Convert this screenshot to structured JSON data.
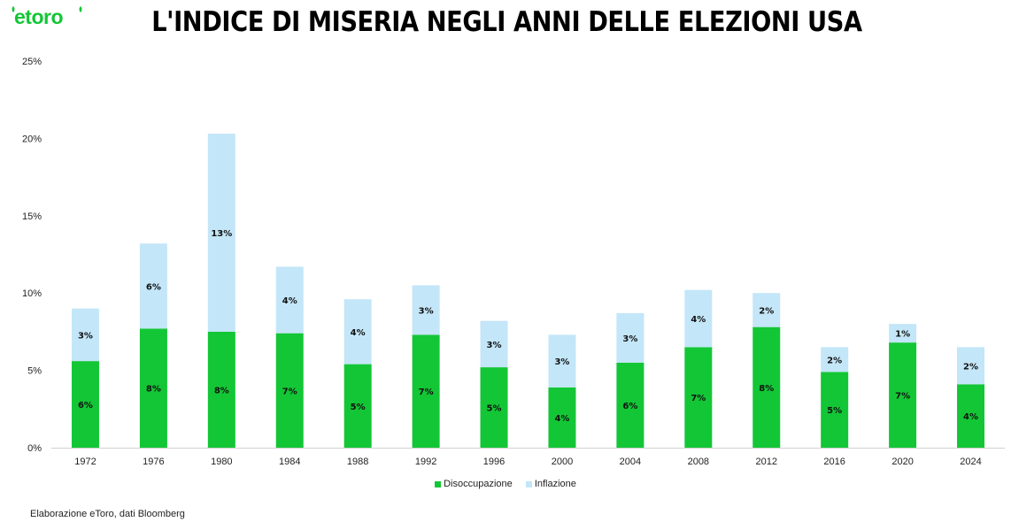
{
  "brand": {
    "logo_text": "etoro"
  },
  "title": "L'INDICE DI MISERIA NEGLI ANNI DELLE ELEZIONI USA",
  "source": "Elaborazione eToro, dati Bloomberg",
  "colors": {
    "disoccupazione": "#13c636",
    "inflazione": "#c3e6f8",
    "brand": "#13c636"
  },
  "chart_data": {
    "type": "bar",
    "stacked": true,
    "categories": [
      "1972",
      "1976",
      "1980",
      "1984",
      "1988",
      "1992",
      "1996",
      "2000",
      "2004",
      "2008",
      "2012",
      "2016",
      "2020",
      "2024"
    ],
    "series": [
      {
        "name": "Disoccupazione",
        "values": [
          5.6,
          7.7,
          7.5,
          7.4,
          5.4,
          7.3,
          5.2,
          3.9,
          5.5,
          6.5,
          7.8,
          4.9,
          6.8,
          4.1
        ],
        "labels": [
          "6%",
          "8%",
          "8%",
          "7%",
          "5%",
          "7%",
          "5%",
          "4%",
          "6%",
          "7%",
          "8%",
          "5%",
          "7%",
          "4%"
        ]
      },
      {
        "name": "Inflazione",
        "values": [
          3.4,
          5.5,
          12.8,
          4.3,
          4.2,
          3.2,
          3.0,
          3.4,
          3.2,
          3.7,
          2.2,
          1.6,
          1.2,
          2.4
        ],
        "labels": [
          "3%",
          "6%",
          "13%",
          "4%",
          "4%",
          "3%",
          "3%",
          "3%",
          "3%",
          "4%",
          "2%",
          "2%",
          "1%",
          "2%"
        ]
      }
    ],
    "ylim": [
      0,
      25
    ],
    "yticks": [
      0,
      5,
      10,
      15,
      20,
      25
    ],
    "ytick_labels": [
      "0%",
      "5%",
      "10%",
      "15%",
      "20%",
      "25%"
    ],
    "legend_position": "bottom",
    "grid": false
  }
}
